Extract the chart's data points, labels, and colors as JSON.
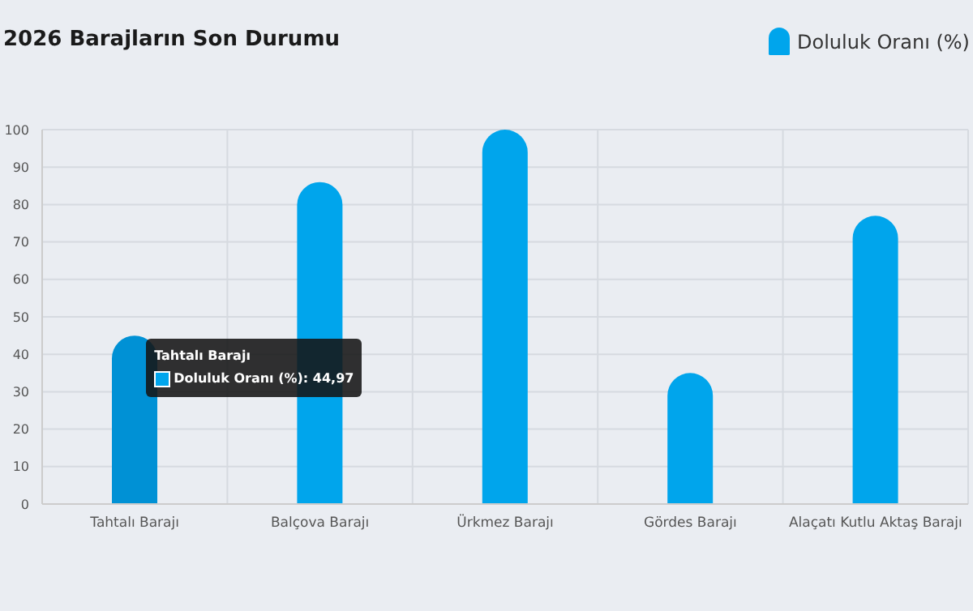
{
  "chart_data": {
    "type": "bar",
    "title": "2026 Barajların Son Durumu",
    "categories": [
      "Tahtalı Barajı",
      "Balçova Barajı",
      "Ürkmez Barajı",
      "Gördes Barajı",
      "Alaçatı Kutlu Aktaş Barajı"
    ],
    "series": [
      {
        "name": "Doluluk Oranı (%)",
        "color": "#00a5ec",
        "colors": [
          "#0091d5",
          "#00a5ec",
          "#00a5ec",
          "#00a5ec",
          "#00a5ec"
        ],
        "values": [
          44.97,
          86,
          100,
          35,
          77
        ]
      }
    ],
    "ylim": [
      0,
      100
    ],
    "yticks": [
      0,
      10,
      20,
      30,
      40,
      50,
      60,
      70,
      80,
      90,
      100
    ],
    "grid": true,
    "legend": "top right",
    "annotations": [
      {
        "text": "Tahtalı Barajı\nDoluluk Oranı (%): 44,97",
        "x": "Tahtalı Barajı",
        "y": 44.97
      }
    ]
  }
}
